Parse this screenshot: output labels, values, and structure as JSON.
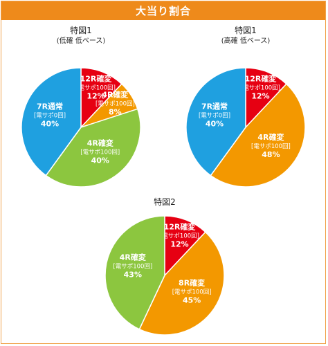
{
  "header": {
    "title": "大当り割合"
  },
  "chart_data": [
    {
      "type": "pie",
      "title": "特図1",
      "subtitle": "(低確 低ベース)",
      "slices": [
        {
          "label": "12R確変",
          "sub": "[電サポ100回]",
          "value": 12,
          "pct": "12%",
          "color": "#e60012"
        },
        {
          "label": "4R確変",
          "sub": "[電サポ100回]",
          "value": 8,
          "pct": "8%",
          "color": "#f39800"
        },
        {
          "label": "4R確変",
          "sub": "[電サポ100回]",
          "value": 40,
          "pct": "40%",
          "color": "#8cc63f"
        },
        {
          "label": "7R通常",
          "sub": "[電サポ0回]",
          "value": 40,
          "pct": "40%",
          "color": "#1fa0e0"
        }
      ]
    },
    {
      "type": "pie",
      "title": "特図1",
      "subtitle": "(高確 低ベース)",
      "slices": [
        {
          "label": "12R確変",
          "sub": "[電サポ100回]",
          "value": 12,
          "pct": "12%",
          "color": "#e60012"
        },
        {
          "label": "4R確変",
          "sub": "[電サポ100回]",
          "value": 48,
          "pct": "48%",
          "color": "#f39800"
        },
        {
          "label": "7R通常",
          "sub": "[電サポ0回]",
          "value": 40,
          "pct": "40%",
          "color": "#1fa0e0"
        }
      ]
    },
    {
      "type": "pie",
      "title": "特図2",
      "subtitle": "",
      "slices": [
        {
          "label": "12R確変",
          "sub": "[電サポ100回]",
          "value": 12,
          "pct": "12%",
          "color": "#e60012"
        },
        {
          "label": "8R確変",
          "sub": "[電サポ100回]",
          "value": 45,
          "pct": "45%",
          "color": "#f39800"
        },
        {
          "label": "4R確変",
          "sub": "[電サポ100回]",
          "value": 43,
          "pct": "43%",
          "color": "#8cc63f"
        }
      ]
    }
  ]
}
